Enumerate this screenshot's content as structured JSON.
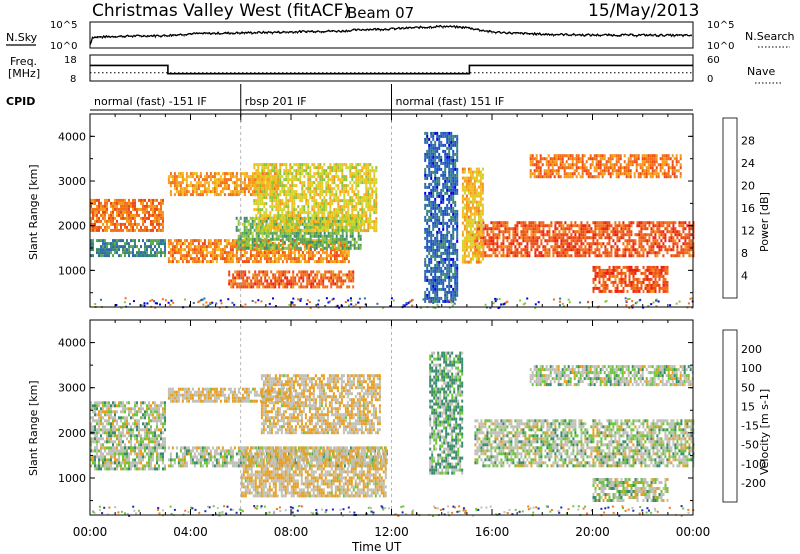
{
  "header": {
    "title": "Christmas Valley West (fitACF)",
    "beam": "Beam 07",
    "date": "15/May/2013"
  },
  "noise_panel": {
    "left_label": "N.Sky",
    "right_label": "N.Search",
    "left_ticks": [
      "10^5",
      "10^0"
    ],
    "right_ticks": [
      "10^5",
      "10^0"
    ]
  },
  "freq_panel": {
    "left_label_1": "Freq.",
    "left_label_2": "[MHz]",
    "right_label": "Nave",
    "left_ticks": [
      "18",
      "8"
    ],
    "right_ticks": [
      "60",
      "0"
    ]
  },
  "cpid": {
    "label": "CPID",
    "segments": [
      {
        "text": "normal (fast) -151 IF",
        "start": 0,
        "end": 6
      },
      {
        "text": "rbsp 201 IF",
        "start": 6,
        "end": 12
      },
      {
        "text": "normal (fast) 151 IF",
        "start": 12,
        "end": 24
      }
    ]
  },
  "x_axis": {
    "label": "Time UT",
    "ticks": [
      "00:00",
      "04:00",
      "08:00",
      "12:00",
      "16:00",
      "20:00",
      "00:00"
    ]
  },
  "power_panel": {
    "ylabel": "Slant Range [km]",
    "colorbar_label": "Power [dB]",
    "colorbar_ticks": [
      "28",
      "24",
      "20",
      "16",
      "12",
      "8",
      "4"
    ],
    "colors": [
      "#0000dd",
      "#1a50c8",
      "#2f6ea8",
      "#3a8a6e",
      "#5ca65a",
      "#8cc43c",
      "#cfd62e",
      "#f2bd24",
      "#f59a1c",
      "#f2701a",
      "#f04a14",
      "#ee2010"
    ]
  },
  "velocity_panel": {
    "ylabel": "Slant Range [km]",
    "colorbar_label": "Velocity [m s-1]",
    "colorbar_ticks": [
      "200",
      "100",
      "50",
      "15",
      "-15",
      "-50",
      "-100",
      "-200"
    ],
    "colors": [
      "#1c2ab0",
      "#2e5f9a",
      "#3a8a6e",
      "#6ac63a",
      "#c0c0b8",
      "#e8a020",
      "#f47a1a",
      "#f04a18",
      "#e01010"
    ],
    "ground_scatter_color": "#c0c0b8"
  },
  "chart_data": {
    "type": "heatmap",
    "x": {
      "unit": "hours UT",
      "range": [
        0,
        24
      ]
    },
    "y": {
      "unit": "km",
      "range": [
        180,
        4500
      ],
      "ticks": [
        1000,
        2000,
        3000,
        4000
      ]
    },
    "noise": {
      "y_range_log10": [
        0,
        5
      ],
      "sky_log10": [
        [
          0,
          0.3
        ],
        [
          0.1,
          2.0
        ],
        [
          1,
          2.2
        ],
        [
          2,
          2.3
        ],
        [
          3,
          2.4
        ],
        [
          4,
          2.8
        ],
        [
          5,
          2.9
        ],
        [
          6,
          3.0
        ],
        [
          7,
          3.1
        ],
        [
          8,
          3.2
        ],
        [
          9,
          3.4
        ],
        [
          10,
          3.4
        ],
        [
          11,
          3.8
        ],
        [
          12,
          3.9
        ],
        [
          13,
          4.2
        ],
        [
          14,
          4.5
        ],
        [
          15,
          4.2
        ],
        [
          16,
          3.2
        ],
        [
          17,
          2.9
        ],
        [
          18,
          2.7
        ],
        [
          19,
          2.6
        ],
        [
          20,
          2.5
        ],
        [
          22,
          2.5
        ],
        [
          24,
          2.4
        ]
      ]
    },
    "frequency": {
      "unit": "MHz",
      "range": [
        8,
        18
      ],
      "steps": [
        [
          0,
          14.2
        ],
        [
          3.1,
          14.2
        ],
        [
          3.1,
          10.4
        ],
        [
          15.1,
          10.4
        ],
        [
          15.1,
          14.2
        ],
        [
          24,
          14.2
        ]
      ]
    },
    "nave": {
      "range": [
        0,
        60
      ],
      "value": 17
    },
    "power_bands": [
      {
        "t0": 0,
        "t1": 2.9,
        "r0": 1900,
        "r1": 2600,
        "v": 24
      },
      {
        "t0": 0,
        "t1": 3,
        "r0": 1300,
        "r1": 1700,
        "v": 10
      },
      {
        "t0": 3.1,
        "t1": 10.3,
        "r0": 1180,
        "r1": 1700,
        "v": 23
      },
      {
        "t0": 5.8,
        "t1": 10.8,
        "r0": 1500,
        "r1": 2200,
        "v": 13
      },
      {
        "t0": 3.1,
        "t1": 7.4,
        "r0": 2700,
        "r1": 3200,
        "v": 22
      },
      {
        "t0": 6.5,
        "t1": 11.4,
        "r0": 1900,
        "r1": 3400,
        "v": 18
      },
      {
        "t0": 5.5,
        "t1": 10.5,
        "r0": 600,
        "r1": 1000,
        "v": 25
      },
      {
        "t0": 15.3,
        "t1": 24,
        "r0": 1300,
        "r1": 2100,
        "v": 26
      },
      {
        "t0": 17.5,
        "t1": 23.5,
        "r0": 3100,
        "r1": 3600,
        "v": 24
      },
      {
        "t0": 20,
        "t1": 23,
        "r0": 500,
        "r1": 1100,
        "v": 26
      },
      {
        "t0": 14.8,
        "t1": 15.6,
        "r0": 1200,
        "r1": 3300,
        "v": 20
      },
      {
        "t0": 13.3,
        "t1": 14.6,
        "r0": 300,
        "r1": 4100,
        "v": 7
      }
    ],
    "velocity_bands": [
      {
        "t0": 0,
        "t1": 3,
        "r0": 1700,
        "r1": 2700,
        "v": 0
      },
      {
        "t0": 0,
        "t1": 3,
        "r0": 1200,
        "r1": 1700,
        "v": 0
      },
      {
        "t0": 3.1,
        "t1": 11.8,
        "r0": 1250,
        "r1": 1700,
        "v": 0
      },
      {
        "t0": 6,
        "t1": 11.8,
        "r0": 600,
        "r1": 1700,
        "v": -30
      },
      {
        "t0": 3.1,
        "t1": 8,
        "r0": 2700,
        "r1": 3000,
        "v": -30
      },
      {
        "t0": 6.8,
        "t1": 11.5,
        "r0": 2000,
        "r1": 3300,
        "v": -30
      },
      {
        "t0": 15.3,
        "t1": 24,
        "r0": 1300,
        "r1": 2300,
        "v": 0
      },
      {
        "t0": 17.5,
        "t1": 24,
        "r0": 3100,
        "r1": 3500,
        "v": 0
      },
      {
        "t0": 13.5,
        "t1": 14.8,
        "r0": 1100,
        "r1": 3800,
        "v": 30
      },
      {
        "t0": 20,
        "t1": 23,
        "r0": 500,
        "r1": 1000,
        "v": 0
      }
    ]
  }
}
